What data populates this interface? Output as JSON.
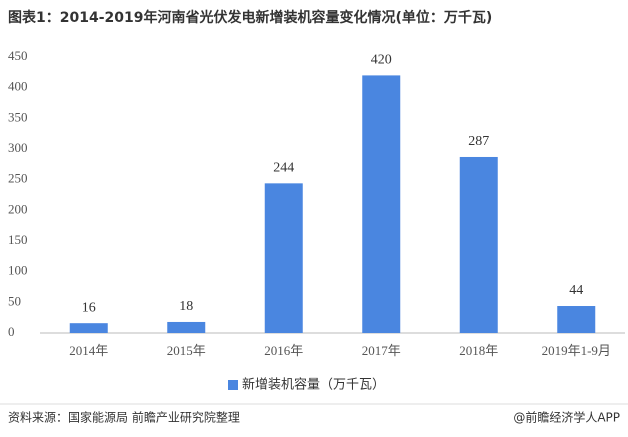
{
  "chart_data": {
    "type": "bar",
    "title": "图表1：2014-2019年河南省光伏发电新增装机容量变化情况(单位：万千瓦)",
    "categories": [
      "2014年",
      "2015年",
      "2016年",
      "2017年",
      "2018年",
      "2019年1-9月"
    ],
    "series": [
      {
        "name": "新增装机容量（万千瓦）",
        "color": "#4a86e0",
        "values": [
          16,
          18,
          244,
          420,
          287,
          44
        ]
      }
    ],
    "ylim": [
      0,
      450
    ],
    "yticks": [
      0,
      50,
      100,
      150,
      200,
      250,
      300,
      350,
      400,
      450
    ],
    "legend": "bottom"
  },
  "footer": {
    "source": "资料来源：国家能源局 前瞻产业研究院整理",
    "brand": "@前瞻经济学人APP"
  }
}
